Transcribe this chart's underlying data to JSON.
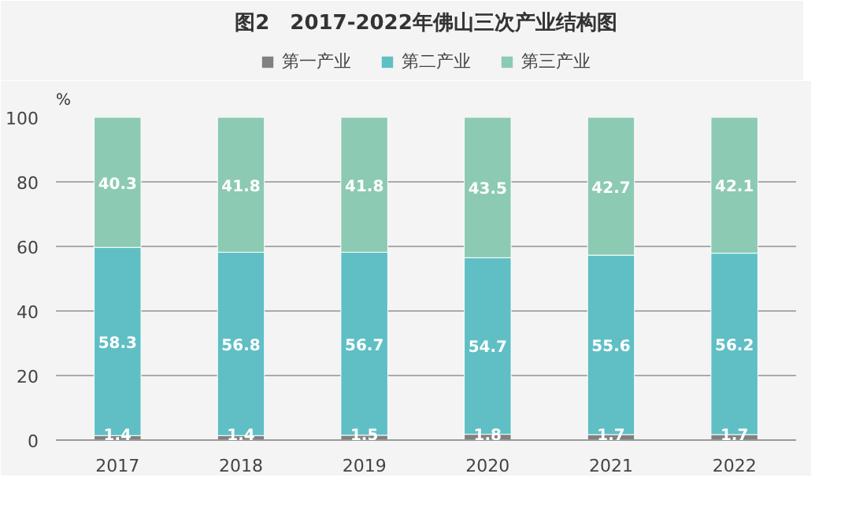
{
  "chart_data": {
    "type": "bar",
    "title": "图2　2017-2022年佛山三次产业结构图",
    "ylabel": "%",
    "categories": [
      "2017",
      "2018",
      "2019",
      "2020",
      "2021",
      "2022"
    ],
    "stacked": true,
    "data_labels": true,
    "legend": "top",
    "grid": "y",
    "ylim": [
      0,
      100
    ],
    "yticks": [
      0,
      20,
      40,
      60,
      80,
      100
    ],
    "series": [
      {
        "name": "第一产业",
        "color": "#808080",
        "values": [
          1.4,
          1.4,
          1.5,
          1.8,
          1.7,
          1.7
        ]
      },
      {
        "name": "第二产业",
        "color": "#5fbfc5",
        "values": [
          58.3,
          56.8,
          56.7,
          54.7,
          55.6,
          56.2
        ]
      },
      {
        "name": "第三产业",
        "color": "#8ccab3",
        "values": [
          40.3,
          41.8,
          41.8,
          43.5,
          42.7,
          42.1
        ]
      }
    ]
  }
}
